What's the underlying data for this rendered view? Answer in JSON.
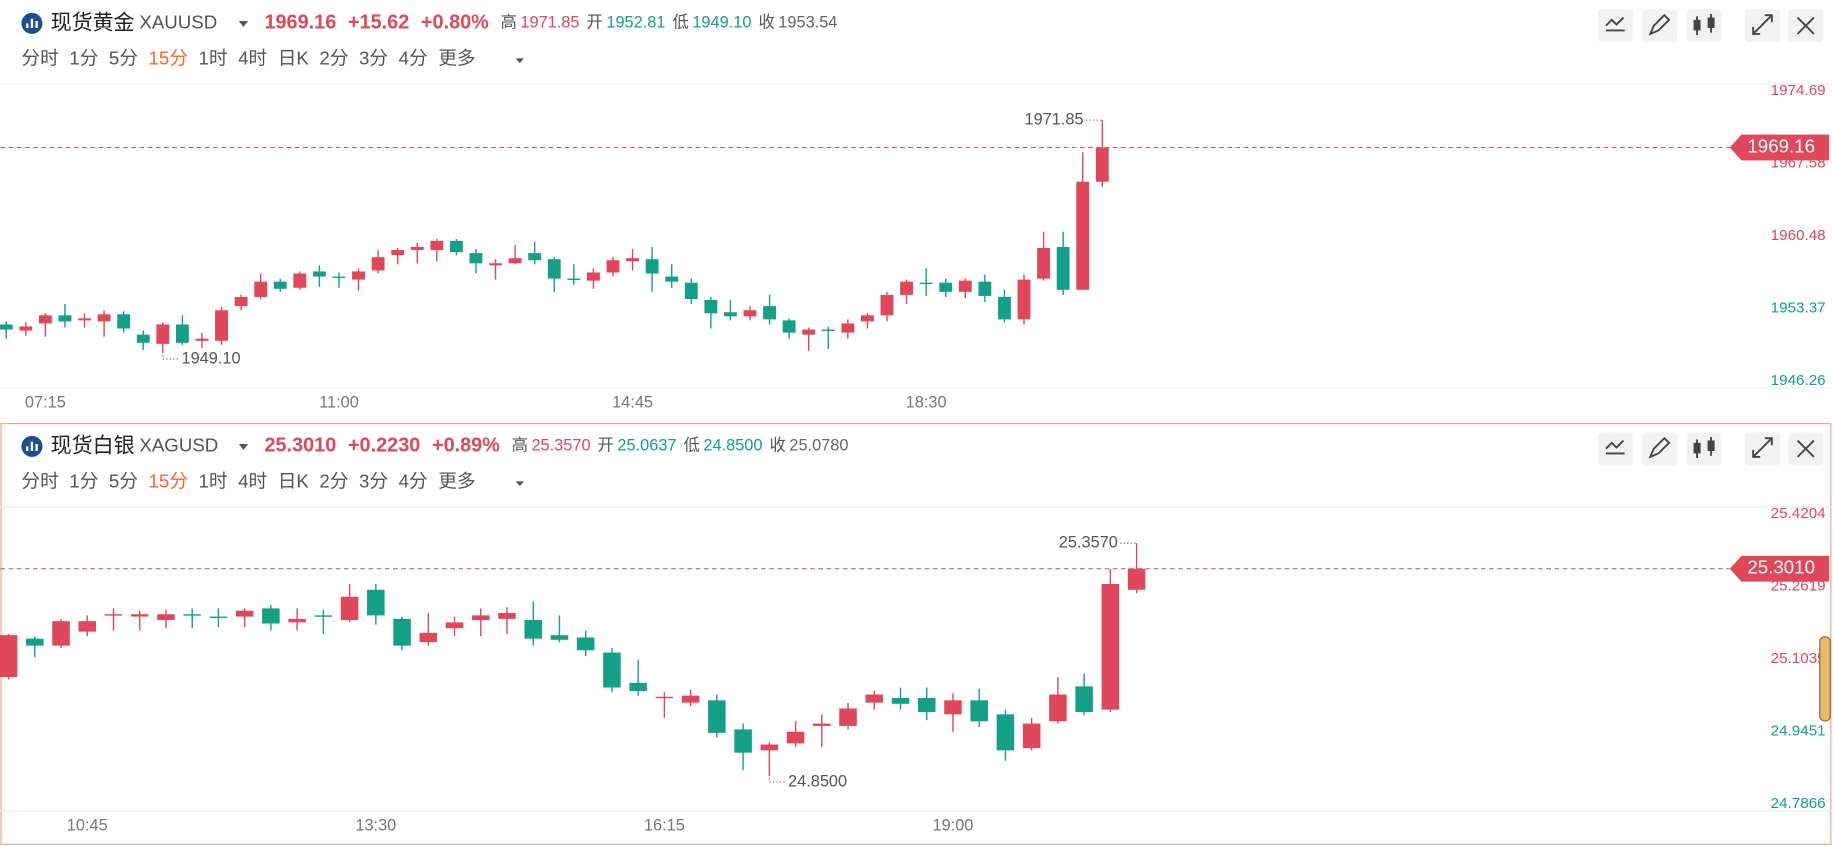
{
  "tabs": [
    "分时",
    "1分",
    "5分",
    "15分",
    "1时",
    "4时",
    "日K",
    "2分",
    "3分",
    "4分",
    "更多"
  ],
  "active_tab": "15分",
  "chart_data": [
    {
      "type": "candlestick",
      "title": "现货黄金",
      "symbol": "XAUUSD",
      "price": "1969.16",
      "change": "+15.62",
      "change_pct": "+0.80%",
      "stats": [
        {
          "label": "高",
          "value": "1971.85",
          "color": "#e0475a"
        },
        {
          "label": "开",
          "value": "1952.81",
          "color": "#13a086"
        },
        {
          "label": "低",
          "value": "1949.10",
          "color": "#13a086"
        },
        {
          "label": "收",
          "value": "1953.54",
          "color": "#666666"
        }
      ],
      "up_color": "#e0475a",
      "down_color": "#13a086",
      "categories": [
        null,
        null,
        "07:15",
        null,
        null,
        null,
        null,
        null,
        null,
        null,
        null,
        null,
        null,
        null,
        null,
        null,
        null,
        "11:00",
        null,
        null,
        null,
        null,
        null,
        null,
        null,
        null,
        null,
        null,
        null,
        null,
        null,
        null,
        "14:45",
        null,
        null,
        null,
        null,
        null,
        null,
        null,
        null,
        null,
        null,
        null,
        null,
        null,
        null,
        "18:30",
        null,
        null,
        null,
        null,
        null,
        null,
        null,
        null,
        null
      ],
      "open": [
        1951.8,
        1951.2,
        1951.9,
        1952.7,
        1952.2,
        1952.1,
        1952.8,
        1950.8,
        1949.9,
        1951.8,
        1950.2,
        1950.2,
        1953.6,
        1954.5,
        1956.0,
        1955.4,
        1957.0,
        1956.5,
        1956.2,
        1957.1,
        1958.6,
        1959.1,
        1959.1,
        1960.0,
        1958.8,
        1957.6,
        1957.8,
        1958.8,
        1958.2,
        1956.3,
        1956.1,
        1956.9,
        1958.0,
        1958.2,
        1956.5,
        1955.9,
        1954.2,
        1953.0,
        1952.6,
        1953.6,
        1952.2,
        1950.8,
        1951.3,
        1951.0,
        1952.1,
        1952.7,
        1954.7,
        1955.9,
        1955.9,
        1955.0,
        1956.0,
        1954.5,
        1952.3,
        1956.3,
        1959.4,
        1955.2,
        1965.8
      ],
      "close": [
        1951.3,
        1951.6,
        1952.7,
        1952.1,
        1952.4,
        1952.8,
        1951.4,
        1950.0,
        1951.8,
        1950.0,
        1950.4,
        1953.2,
        1954.5,
        1956.0,
        1955.3,
        1956.8,
        1956.5,
        1956.5,
        1957.0,
        1958.4,
        1959.1,
        1959.4,
        1960.0,
        1958.9,
        1957.8,
        1957.8,
        1958.3,
        1958.1,
        1956.3,
        1956.2,
        1956.9,
        1958.1,
        1958.3,
        1956.8,
        1956.0,
        1954.3,
        1952.9,
        1952.6,
        1953.2,
        1952.3,
        1951.0,
        1951.3,
        1951.3,
        1951.9,
        1952.7,
        1954.7,
        1956.0,
        1955.8,
        1955.0,
        1956.1,
        1954.6,
        1952.3,
        1956.2,
        1959.3,
        1955.2,
        1965.8,
        1969.16
      ],
      "high": [
        1952.1,
        1952.0,
        1952.9,
        1953.8,
        1952.9,
        1953.2,
        1953.1,
        1951.2,
        1952.0,
        1952.7,
        1951.0,
        1953.5,
        1954.7,
        1956.8,
        1956.3,
        1957.0,
        1957.6,
        1956.9,
        1957.3,
        1959.1,
        1959.3,
        1959.8,
        1960.2,
        1960.2,
        1959.2,
        1958.2,
        1959.6,
        1959.9,
        1958.4,
        1957.7,
        1957.3,
        1958.4,
        1959.2,
        1959.4,
        1957.7,
        1956.3,
        1954.5,
        1954.2,
        1953.6,
        1954.7,
        1952.4,
        1951.5,
        1951.6,
        1952.3,
        1952.9,
        1955.0,
        1956.2,
        1957.3,
        1956.3,
        1956.3,
        1956.7,
        1955.2,
        1956.7,
        1960.9,
        1960.9,
        1968.7,
        1971.85
      ],
      "low": [
        1950.4,
        1950.7,
        1950.6,
        1951.5,
        1951.5,
        1950.6,
        1951.0,
        1949.3,
        1949.1,
        1949.8,
        1949.5,
        1949.8,
        1953.2,
        1954.3,
        1955.0,
        1955.2,
        1955.5,
        1955.4,
        1955.1,
        1956.8,
        1957.7,
        1957.8,
        1958.0,
        1958.6,
        1956.8,
        1956.2,
        1957.7,
        1957.7,
        1955.0,
        1955.7,
        1955.3,
        1956.5,
        1957.1,
        1955.0,
        1955.4,
        1953.8,
        1951.4,
        1952.2,
        1952.2,
        1951.8,
        1950.4,
        1949.2,
        1949.4,
        1950.4,
        1951.4,
        1952.1,
        1953.8,
        1954.6,
        1954.5,
        1954.4,
        1954.0,
        1952.0,
        1951.8,
        1956.1,
        1954.7,
        1955.2,
        1965.3
      ],
      "high_label": "1971.85",
      "low_label": "1949.10",
      "price_label": "1969.16",
      "ylim": [
        1946.26,
        1974.69
      ],
      "yticks": [
        1946.26,
        1953.37,
        1960.48,
        1967.58,
        1974.69
      ],
      "grid": false
    },
    {
      "type": "candlestick",
      "title": "现货白银",
      "symbol": "XAGUSD",
      "price": "25.3010",
      "change": "+0.2230",
      "change_pct": "+0.89%",
      "stats": [
        {
          "label": "高",
          "value": "25.3570",
          "color": "#e0475a"
        },
        {
          "label": "开",
          "value": "25.0637",
          "color": "#13a086"
        },
        {
          "label": "低",
          "value": "24.8500",
          "color": "#13a086"
        },
        {
          "label": "收",
          "value": "25.0780",
          "color": "#666666"
        }
      ],
      "up_color": "#e0475a",
      "down_color": "#13a086",
      "categories": [
        null,
        null,
        null,
        "10:45",
        null,
        null,
        null,
        null,
        null,
        null,
        null,
        null,
        null,
        null,
        "13:30",
        null,
        null,
        null,
        null,
        null,
        null,
        null,
        null,
        null,
        null,
        "16:15",
        null,
        null,
        null,
        null,
        null,
        null,
        null,
        null,
        null,
        null,
        "19:00",
        null,
        null,
        null,
        null,
        null,
        null,
        null
      ],
      "open": [
        25.0641,
        25.1481,
        25.1328,
        25.1634,
        25.199,
        25.1964,
        25.1888,
        25.2015,
        25.1964,
        25.1964,
        25.2143,
        25.1837,
        25.199,
        25.1888,
        25.255,
        25.1914,
        25.1405,
        25.171,
        25.1888,
        25.1914,
        25.1888,
        25.1557,
        25.1506,
        25.1176,
        25.0514,
        25.0183,
        25.0081,
        25.0132,
        24.9496,
        24.9038,
        24.9191,
        24.9572,
        24.9572,
        25.0081,
        25.0183,
        25.0183,
        24.9826,
        25.0132,
        24.9826,
        24.9089,
        24.9674,
        25.0437,
        24.9928,
        25.255
      ],
      "close": [
        25.1557,
        25.1328,
        25.1863,
        25.1863,
        25.2015,
        25.2015,
        25.2015,
        25.199,
        25.1964,
        25.2092,
        25.1812,
        25.1914,
        25.199,
        25.2397,
        25.199,
        25.1328,
        25.1608,
        25.1837,
        25.199,
        25.2041,
        25.1481,
        25.1456,
        25.1227,
        25.0412,
        25.0336,
        25.0209,
        25.0234,
        24.942,
        24.8987,
        24.9165,
        24.9445,
        24.9623,
        24.9954,
        25.0259,
        25.0056,
        24.9877,
        25.0132,
        24.9674,
        24.9038,
        24.9623,
        25.0259,
        24.9877,
        25.2677,
        25.301
      ],
      "high": [
        25.1583,
        25.1532,
        25.1914,
        25.199,
        25.2143,
        25.2092,
        25.2117,
        25.2143,
        25.2143,
        25.2143,
        25.2219,
        25.2143,
        25.2117,
        25.2677,
        25.2677,
        25.1964,
        25.2041,
        25.1964,
        25.2143,
        25.2168,
        25.2295,
        25.199,
        25.1659,
        25.1277,
        25.1023,
        25.031,
        25.0361,
        25.0259,
        24.9623,
        24.9216,
        24.9674,
        24.9826,
        25.0081,
        25.0336,
        25.0412,
        25.0412,
        25.0285,
        25.0387,
        24.9928,
        24.975,
        25.0641,
        25.0717,
        25.3008,
        25.357
      ],
      "low": [
        25.059,
        25.1074,
        25.1277,
        25.1532,
        25.1659,
        25.1659,
        25.171,
        25.171,
        25.1735,
        25.1735,
        25.1659,
        25.1659,
        25.1583,
        25.1837,
        25.1786,
        25.1227,
        25.1328,
        25.1532,
        25.1532,
        25.1583,
        25.1328,
        25.1405,
        25.1099,
        25.031,
        25.0234,
        24.975,
        25.0005,
        24.9318,
        24.8605,
        24.85,
        24.9114,
        24.9114,
        24.9496,
        24.9928,
        24.9928,
        24.9699,
        24.9445,
        24.9547,
        24.8809,
        24.9038,
        24.9623,
        24.9801,
        24.9877,
        25.2473
      ],
      "high_label": "25.3570",
      "low_label": "24.8500",
      "price_label": "25.3010",
      "ylim": [
        24.7866,
        25.4204
      ],
      "yticks": [
        24.7866,
        24.9451,
        25.1035,
        25.2619,
        25.4204
      ],
      "grid": false
    }
  ]
}
